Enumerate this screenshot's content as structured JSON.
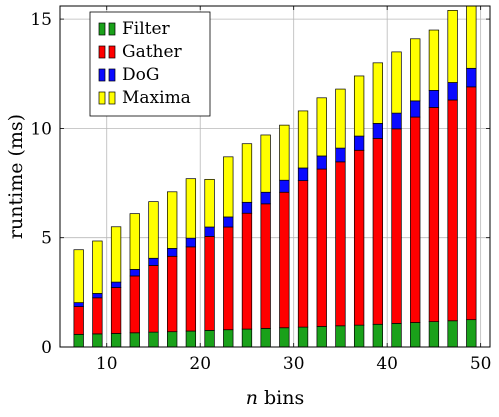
{
  "chart_data": {
    "type": "bar",
    "stacked": true,
    "x": [
      7,
      9,
      11,
      13,
      15,
      17,
      19,
      21,
      23,
      25,
      27,
      29,
      31,
      33,
      35,
      37,
      39,
      41,
      43,
      45,
      47,
      49
    ],
    "series": [
      {
        "name": "Filter",
        "color": "#1aa11a",
        "values": [
          0.58,
          0.6,
          0.62,
          0.65,
          0.68,
          0.7,
          0.73,
          0.76,
          0.79,
          0.82,
          0.85,
          0.88,
          0.91,
          0.94,
          0.97,
          1.0,
          1.04,
          1.08,
          1.12,
          1.16,
          1.2,
          1.25
        ]
      },
      {
        "name": "Gather",
        "color": "#ff0000",
        "values": [
          1.27,
          1.65,
          2.1,
          2.6,
          3.05,
          3.45,
          3.85,
          4.3,
          4.7,
          5.3,
          5.7,
          6.2,
          6.7,
          7.2,
          7.5,
          8.0,
          8.5,
          8.9,
          9.4,
          9.8,
          10.1,
          10.65
        ]
      },
      {
        "name": "DoG",
        "color": "#0a0aff",
        "values": [
          0.18,
          0.2,
          0.25,
          0.3,
          0.33,
          0.36,
          0.4,
          0.43,
          0.46,
          0.5,
          0.53,
          0.55,
          0.58,
          0.6,
          0.63,
          0.65,
          0.69,
          0.72,
          0.74,
          0.78,
          0.8,
          0.85
        ]
      },
      {
        "name": "Maxima",
        "color": "#ffff00",
        "values": [
          2.42,
          2.4,
          2.53,
          2.55,
          2.59,
          2.59,
          2.72,
          2.18,
          2.75,
          2.68,
          2.62,
          2.52,
          2.61,
          2.66,
          2.7,
          2.75,
          2.77,
          2.8,
          2.84,
          2.76,
          3.3,
          2.85
        ]
      }
    ],
    "xlabel_italic": "n",
    "xlabel_rest": " bins",
    "ylabel": "runtime (ms)",
    "xlim": [
      5,
      51
    ],
    "ylim": [
      0,
      15.6
    ],
    "xticks": [
      10,
      20,
      30,
      40,
      50
    ],
    "yticks": [
      0,
      5,
      10,
      15
    ],
    "grid": true,
    "legend_position": "top-left"
  }
}
